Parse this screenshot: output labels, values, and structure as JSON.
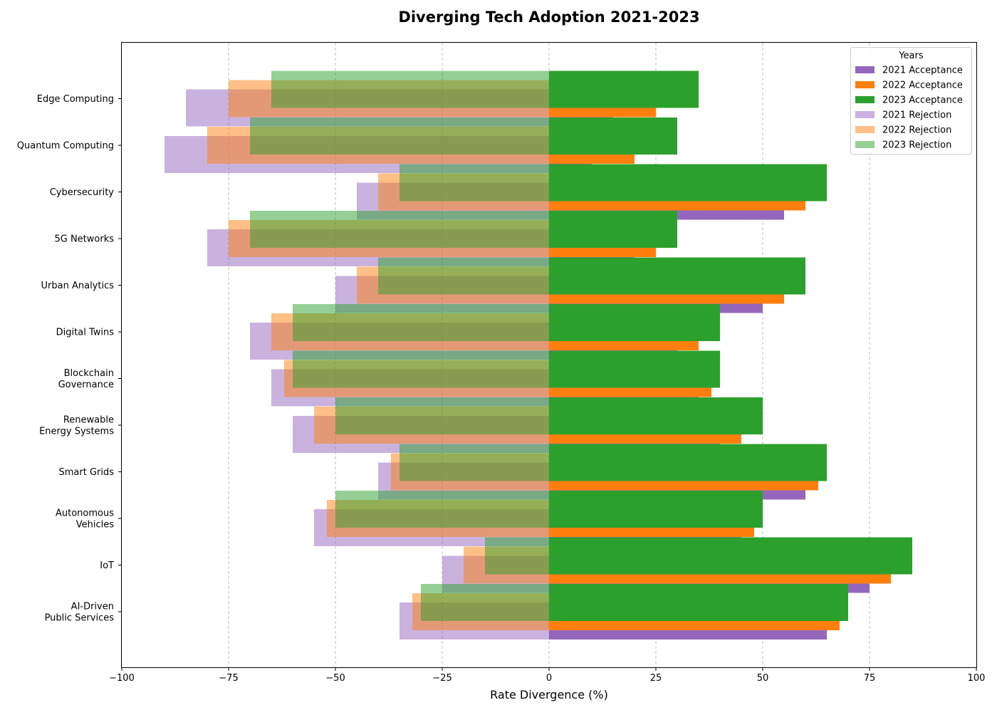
{
  "chart_data": {
    "type": "bar",
    "orientation": "horizontal",
    "title": "Diverging Tech Adoption 2021-2023",
    "xlabel": "Rate Divergence (%)",
    "ylabel": "",
    "xlim": [
      -100,
      100
    ],
    "xticks": [
      -100,
      -75,
      -50,
      -25,
      0,
      25,
      50,
      75,
      100
    ],
    "xtick_labels": [
      "−100",
      "−75",
      "−50",
      "−25",
      "0",
      "25",
      "50",
      "75",
      "100"
    ],
    "grid": "x-dashed",
    "legend_position": "top-right",
    "legend_title": "Years",
    "categories": [
      "Edge Computing",
      "Quantum Computing",
      "Cybersecurity",
      "5G Networks",
      "Urban Analytics",
      "Digital Twins",
      "Blockchain\nGovernance",
      "Renewable\nEnergy Systems",
      "Smart Grids",
      "Autonomous\nVehicles",
      "IoT",
      "AI-Driven\nPublic Services"
    ],
    "series": [
      {
        "name": "2021 Acceptance",
        "color": "#9467bd",
        "opacity": 1.0,
        "offset": 0,
        "values": [
          15,
          10,
          55,
          20,
          50,
          30,
          35,
          40,
          60,
          45,
          75,
          65
        ]
      },
      {
        "name": "2022 Acceptance",
        "color": "#ff7f0e",
        "opacity": 1.0,
        "offset": 1,
        "values": [
          25,
          20,
          60,
          25,
          55,
          35,
          38,
          45,
          63,
          48,
          80,
          68
        ]
      },
      {
        "name": "2023 Acceptance",
        "color": "#2ca02c",
        "opacity": 1.0,
        "offset": 2,
        "values": [
          35,
          30,
          65,
          30,
          60,
          40,
          40,
          50,
          65,
          50,
          85,
          70
        ]
      },
      {
        "name": "2021 Rejection",
        "color": "#9467bd",
        "opacity": 0.5,
        "offset": 0,
        "values": [
          -85,
          -90,
          -45,
          -80,
          -50,
          -70,
          -65,
          -60,
          -40,
          -55,
          -25,
          -35
        ]
      },
      {
        "name": "2022 Rejection",
        "color": "#ff7f0e",
        "opacity": 0.5,
        "offset": 1,
        "values": [
          -75,
          -80,
          -40,
          -75,
          -45,
          -65,
          -62,
          -55,
          -37,
          -52,
          -20,
          -32
        ]
      },
      {
        "name": "2023 Rejection",
        "color": "#2ca02c",
        "opacity": 0.5,
        "offset": 2,
        "values": [
          -65,
          -70,
          -35,
          -70,
          -40,
          -60,
          -60,
          -50,
          -35,
          -50,
          -15,
          -30
        ]
      }
    ]
  }
}
